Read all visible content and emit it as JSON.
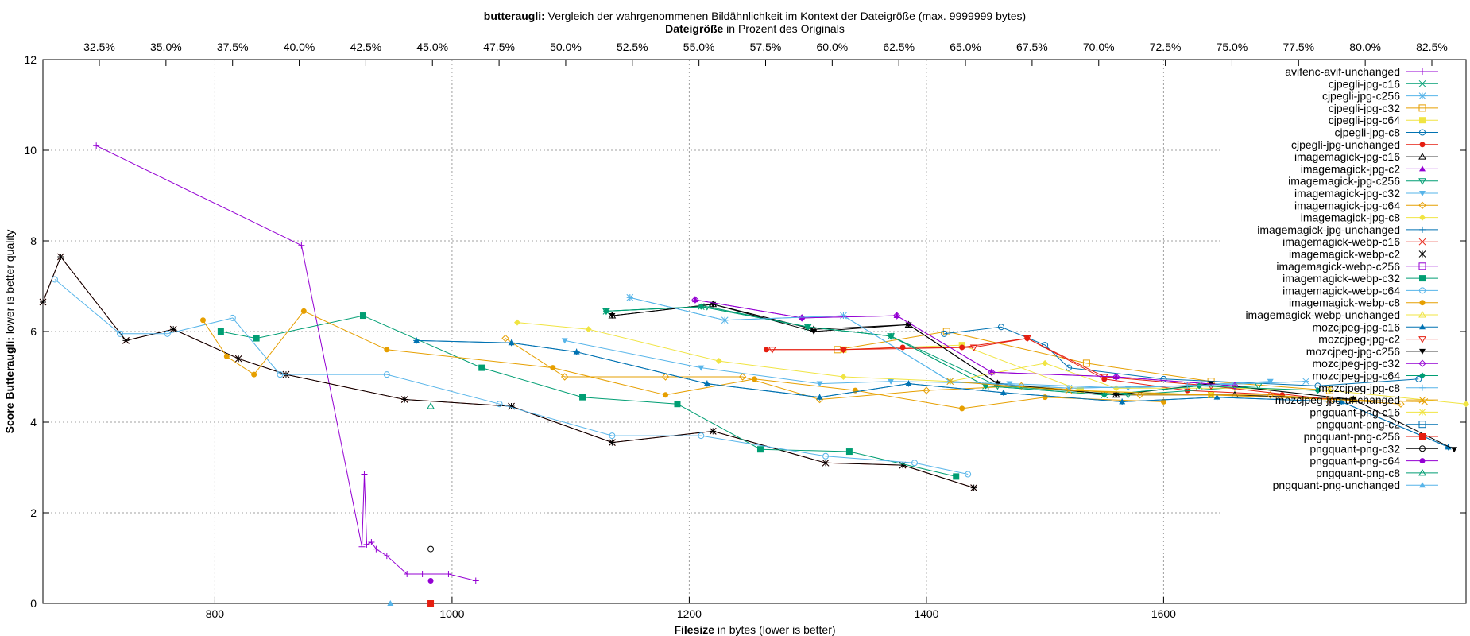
{
  "chart_data": {
    "type": "line",
    "title_bold": "butteraugli:",
    "title_rest": " Vergleich der wahrgenommenen Bildähnlichkeit im Kontext der Dateigröße (max. 9999999 bytes)",
    "x2label_bold": "Dateigröße",
    "x2label_rest": " in Prozent des Originals",
    "xlabel_bold": "Filesize",
    "xlabel_rest": " in bytes (lower is better)",
    "ylabel_bold": "Score Butteraugli:",
    "ylabel_rest": " lower is better quality",
    "xlim": [
      655,
      1855
    ],
    "ylim": [
      0,
      12
    ],
    "xticks": [
      "800",
      "1000",
      "1200",
      "1400",
      "1600"
    ],
    "yticks": [
      "0",
      "2",
      "4",
      "6",
      "8",
      "10",
      "12"
    ],
    "x2ticks": [
      "32.5%",
      "35.0%",
      "37.5%",
      "40.0%",
      "42.5%",
      "45.0%",
      "47.5%",
      "50.0%",
      "52.5%",
      "55.0%",
      "57.5%",
      "60.0%",
      "62.5%",
      "65.0%",
      "67.5%",
      "70.0%",
      "72.5%",
      "75.0%",
      "77.5%",
      "80.0%",
      "82.5%"
    ],
    "grid": true,
    "legend_position": "right",
    "series": [
      {
        "name": "avifenc-avif-unchanged",
        "color": "#9400d3",
        "marker": "plus",
        "points": [
          [
            700,
            10.1
          ],
          [
            873,
            7.9
          ],
          [
            924,
            1.25
          ],
          [
            926,
            2.85
          ],
          [
            928,
            1.3
          ],
          [
            932,
            1.35
          ],
          [
            936,
            1.2
          ],
          [
            945,
            1.05
          ],
          [
            962,
            0.65
          ],
          [
            975,
            0.65
          ],
          [
            997,
            0.65
          ],
          [
            1020,
            0.5
          ]
        ]
      },
      {
        "name": "cjpegli-jpg-c16",
        "color": "#009e73",
        "marker": "x",
        "points": [
          [
            1130,
            6.45
          ],
          [
            1210,
            6.55
          ],
          [
            1300,
            6.1
          ],
          [
            1370,
            5.9
          ],
          [
            1450,
            4.8
          ],
          [
            1550,
            4.6
          ],
          [
            1630,
            4.8
          ]
        ]
      },
      {
        "name": "cjpegli-jpg-c256",
        "color": "#56b4e9",
        "marker": "star",
        "points": [
          [
            1150,
            6.75
          ],
          [
            1230,
            6.25
          ],
          [
            1330,
            6.35
          ],
          [
            1420,
            4.9
          ],
          [
            1520,
            4.75
          ],
          [
            1620,
            4.8
          ],
          [
            1720,
            4.9
          ]
        ]
      },
      {
        "name": "cjpegli-jpg-c32",
        "color": "#e69f00",
        "marker": "square-open",
        "points": [
          [
            1325,
            5.6
          ],
          [
            1417,
            6.0
          ],
          [
            1535,
            5.3
          ],
          [
            1640,
            4.9
          ],
          [
            1740,
            4.7
          ]
        ]
      },
      {
        "name": "cjpegli-jpg-c64",
        "color": "#f0e442",
        "marker": "square-filled",
        "points": [
          [
            1330,
            5.6
          ],
          [
            1430,
            5.7
          ],
          [
            1530,
            4.7
          ],
          [
            1640,
            4.6
          ],
          [
            1760,
            4.5
          ]
        ]
      },
      {
        "name": "cjpegli-jpg-c8",
        "color": "#0072b2",
        "marker": "circle-open",
        "points": [
          [
            1415,
            5.95
          ],
          [
            1463,
            6.1
          ],
          [
            1500,
            5.7
          ],
          [
            1520,
            5.2
          ],
          [
            1600,
            4.95
          ],
          [
            1730,
            4.8
          ],
          [
            1815,
            4.95
          ]
        ]
      },
      {
        "name": "cjpegli-jpg-unchanged",
        "color": "#e51e10",
        "marker": "circle-filled",
        "points": [
          [
            1265,
            5.6
          ],
          [
            1330,
            5.6
          ],
          [
            1380,
            5.65
          ],
          [
            1430,
            5.65
          ],
          [
            1485,
            5.85
          ],
          [
            1550,
            4.95
          ],
          [
            1620,
            4.7
          ],
          [
            1700,
            4.6
          ]
        ]
      },
      {
        "name": "imagemagick-jpg-c16",
        "color": "#000000",
        "marker": "triangle-open",
        "points": [
          [
            1135,
            6.35
          ],
          [
            1220,
            6.6
          ],
          [
            1305,
            6.05
          ],
          [
            1385,
            6.15
          ],
          [
            1460,
            4.85
          ],
          [
            1560,
            4.6
          ],
          [
            1660,
            4.6
          ],
          [
            1760,
            4.5
          ]
        ]
      },
      {
        "name": "imagemagick-jpg-c2",
        "color": "#9400d3",
        "marker": "triangle-filled",
        "points": [
          [
            1205,
            6.7
          ],
          [
            1295,
            6.3
          ],
          [
            1375,
            6.35
          ],
          [
            1455,
            5.1
          ],
          [
            1560,
            5.0
          ],
          [
            1660,
            4.8
          ]
        ]
      },
      {
        "name": "imagemagick-jpg-c256",
        "color": "#009e73",
        "marker": "triangle-down-open",
        "points": [
          [
            1130,
            6.45
          ],
          [
            1215,
            6.55
          ],
          [
            1300,
            6.1
          ],
          [
            1370,
            5.9
          ],
          [
            1460,
            4.8
          ],
          [
            1570,
            4.6
          ],
          [
            1680,
            4.8
          ]
        ]
      },
      {
        "name": "imagemagick-jpg-c32",
        "color": "#56b4e9",
        "marker": "triangle-down-filled",
        "points": [
          [
            1095,
            5.8
          ],
          [
            1210,
            5.2
          ],
          [
            1310,
            4.85
          ],
          [
            1370,
            4.9
          ],
          [
            1470,
            4.85
          ],
          [
            1570,
            4.75
          ],
          [
            1690,
            4.9
          ]
        ]
      },
      {
        "name": "imagemagick-jpg-c64",
        "color": "#e69f00",
        "marker": "diamond-open",
        "points": [
          [
            1045,
            5.85
          ],
          [
            1095,
            5.0
          ],
          [
            1180,
            5.0
          ],
          [
            1245,
            5.0
          ],
          [
            1310,
            4.5
          ],
          [
            1400,
            4.7
          ],
          [
            1480,
            4.8
          ],
          [
            1580,
            4.6
          ],
          [
            1690,
            4.6
          ],
          [
            1800,
            4.4
          ]
        ]
      },
      {
        "name": "imagemagick-jpg-c8",
        "color": "#f0e442",
        "marker": "diamond-filled",
        "points": [
          [
            1055,
            6.2
          ],
          [
            1115,
            6.05
          ],
          [
            1225,
            5.35
          ],
          [
            1330,
            5.0
          ],
          [
            1420,
            4.9
          ],
          [
            1500,
            5.3
          ],
          [
            1560,
            4.75
          ],
          [
            1660,
            4.75
          ],
          [
            1740,
            4.7
          ],
          [
            1855,
            4.4
          ]
        ]
      },
      {
        "name": "imagemagick-jpg-unchanged",
        "color": "#0072b2",
        "marker": "plus",
        "points": [
          [
            970,
            5.8
          ],
          [
            1050,
            5.75
          ],
          [
            1105,
            5.55
          ],
          [
            1215,
            4.85
          ],
          [
            1310,
            4.55
          ],
          [
            1385,
            4.85
          ],
          [
            1465,
            4.65
          ],
          [
            1565,
            4.45
          ],
          [
            1645,
            4.55
          ],
          [
            1750,
            4.45
          ],
          [
            1840,
            3.45
          ]
        ]
      },
      {
        "name": "imagemagick-webp-c16",
        "color": "#e51e10",
        "marker": "x",
        "points": [
          [
            655,
            6.65
          ],
          [
            670,
            7.65
          ],
          [
            725,
            5.8
          ],
          [
            765,
            6.05
          ],
          [
            820,
            5.4
          ],
          [
            860,
            5.05
          ],
          [
            960,
            4.5
          ],
          [
            1050,
            4.35
          ],
          [
            1135,
            3.55
          ],
          [
            1220,
            3.8
          ],
          [
            1315,
            3.1
          ],
          [
            1380,
            3.05
          ],
          [
            1440,
            2.55
          ]
        ]
      },
      {
        "name": "imagemagick-webp-c2",
        "color": "#000000",
        "marker": "star",
        "points": [
          [
            655,
            6.65
          ],
          [
            670,
            7.65
          ],
          [
            725,
            5.8
          ],
          [
            765,
            6.05
          ],
          [
            820,
            5.4
          ],
          [
            860,
            5.05
          ],
          [
            960,
            4.5
          ],
          [
            1050,
            4.35
          ],
          [
            1135,
            3.55
          ],
          [
            1220,
            3.8
          ],
          [
            1315,
            3.1
          ],
          [
            1380,
            3.05
          ],
          [
            1440,
            2.55
          ]
        ]
      },
      {
        "name": "imagemagick-webp-c256",
        "color": "#9400d3",
        "marker": "square-open",
        "points": []
      },
      {
        "name": "imagemagick-webp-c32",
        "color": "#009e73",
        "marker": "square-filled",
        "points": [
          [
            805,
            6.0
          ],
          [
            835,
            5.85
          ],
          [
            925,
            6.35
          ],
          [
            1025,
            5.2
          ],
          [
            1110,
            4.55
          ],
          [
            1190,
            4.4
          ],
          [
            1260,
            3.4
          ],
          [
            1335,
            3.35
          ],
          [
            1425,
            2.8
          ]
        ]
      },
      {
        "name": "imagemagick-webp-c64",
        "color": "#56b4e9",
        "marker": "circle-open",
        "points": [
          [
            665,
            7.15
          ],
          [
            720,
            5.95
          ],
          [
            760,
            5.95
          ],
          [
            815,
            6.3
          ],
          [
            855,
            5.05
          ],
          [
            945,
            5.05
          ],
          [
            1040,
            4.4
          ],
          [
            1135,
            3.7
          ],
          [
            1210,
            3.7
          ],
          [
            1315,
            3.25
          ],
          [
            1390,
            3.1
          ],
          [
            1435,
            2.85
          ]
        ]
      },
      {
        "name": "imagemagick-webp-c8",
        "color": "#e69f00",
        "marker": "circle-filled",
        "points": [
          [
            790,
            6.25
          ],
          [
            810,
            5.45
          ],
          [
            833,
            5.05
          ],
          [
            875,
            6.45
          ],
          [
            945,
            5.6
          ],
          [
            1085,
            5.2
          ],
          [
            1180,
            4.6
          ],
          [
            1255,
            4.95
          ],
          [
            1340,
            4.7
          ],
          [
            1430,
            4.3
          ],
          [
            1500,
            4.55
          ],
          [
            1600,
            4.45
          ]
        ]
      },
      {
        "name": "imagemagick-webp-unchanged",
        "color": "#f0e442",
        "marker": "triangle-open",
        "points": []
      },
      {
        "name": "mozcjpeg-jpg-c16",
        "color": "#0072b2",
        "marker": "triangle-filled",
        "points": [
          [
            970,
            5.8
          ],
          [
            1050,
            5.75
          ],
          [
            1105,
            5.55
          ],
          [
            1215,
            4.85
          ],
          [
            1310,
            4.55
          ],
          [
            1385,
            4.85
          ],
          [
            1465,
            4.65
          ],
          [
            1565,
            4.45
          ],
          [
            1645,
            4.55
          ],
          [
            1750,
            4.45
          ],
          [
            1840,
            3.45
          ]
        ]
      },
      {
        "name": "mozcjpeg-jpg-c2",
        "color": "#e51e10",
        "marker": "triangle-down-open",
        "points": [
          [
            1270,
            5.6
          ],
          [
            1330,
            5.6
          ],
          [
            1440,
            5.65
          ],
          [
            1485,
            5.85
          ],
          [
            1550,
            5.0
          ],
          [
            1640,
            4.8
          ],
          [
            1740,
            4.5
          ]
        ]
      },
      {
        "name": "mozcjpeg-jpg-c256",
        "color": "#000000",
        "marker": "triangle-down-filled",
        "points": [
          [
            1135,
            6.35
          ],
          [
            1220,
            6.6
          ],
          [
            1305,
            6.0
          ],
          [
            1385,
            6.15
          ],
          [
            1460,
            4.85
          ],
          [
            1560,
            4.6
          ],
          [
            1640,
            4.85
          ],
          [
            1760,
            4.5
          ],
          [
            1845,
            3.4
          ]
        ]
      },
      {
        "name": "mozcjpeg-jpg-c32",
        "color": "#9400d3",
        "marker": "diamond-open",
        "points": [
          [
            1205,
            6.7
          ],
          [
            1295,
            6.3
          ],
          [
            1375,
            6.35
          ],
          [
            1455,
            5.1
          ],
          [
            1560,
            5.0
          ],
          [
            1660,
            4.8
          ]
        ]
      },
      {
        "name": "mozcjpeg-jpg-c64",
        "color": "#009e73",
        "marker": "diamond-filled",
        "points": [
          [
            1130,
            6.45
          ],
          [
            1210,
            6.55
          ],
          [
            1300,
            6.1
          ],
          [
            1370,
            5.9
          ],
          [
            1450,
            4.8
          ],
          [
            1550,
            4.6
          ],
          [
            1630,
            4.8
          ],
          [
            1730,
            4.7
          ]
        ]
      },
      {
        "name": "mozcjpeg-jpg-c8",
        "color": "#56b4e9",
        "marker": "plus",
        "points": [
          [
            1150,
            6.75
          ],
          [
            1230,
            6.25
          ],
          [
            1330,
            6.35
          ],
          [
            1420,
            4.9
          ],
          [
            1520,
            4.75
          ],
          [
            1620,
            4.8
          ],
          [
            1720,
            4.9
          ]
        ]
      },
      {
        "name": "mozcjpeg-jpg-unchanged",
        "color": "#e69f00",
        "marker": "x",
        "points": [
          [
            1420,
            4.9
          ],
          [
            1520,
            4.7
          ],
          [
            1640,
            4.6
          ],
          [
            1740,
            4.5
          ],
          [
            1820,
            4.45
          ]
        ]
      },
      {
        "name": "pngquant-png-c16",
        "color": "#f0e442",
        "marker": "star",
        "points": []
      },
      {
        "name": "pngquant-png-c2",
        "color": "#0072b2",
        "marker": "square-open",
        "points": []
      },
      {
        "name": "pngquant-png-c256",
        "color": "#e51e10",
        "marker": "square-filled",
        "points": [
          [
            982,
            0.0
          ]
        ]
      },
      {
        "name": "pngquant-png-c32",
        "color": "#000000",
        "marker": "circle-open",
        "points": [
          [
            982,
            1.2
          ]
        ]
      },
      {
        "name": "pngquant-png-c64",
        "color": "#9400d3",
        "marker": "circle-filled",
        "points": [
          [
            982,
            0.5
          ]
        ]
      },
      {
        "name": "pngquant-png-c8",
        "color": "#009e73",
        "marker": "triangle-open",
        "points": [
          [
            982,
            4.35
          ]
        ]
      },
      {
        "name": "pngquant-png-unchanged",
        "color": "#56b4e9",
        "marker": "triangle-filled",
        "points": [
          [
            948,
            0.0
          ]
        ]
      }
    ]
  }
}
